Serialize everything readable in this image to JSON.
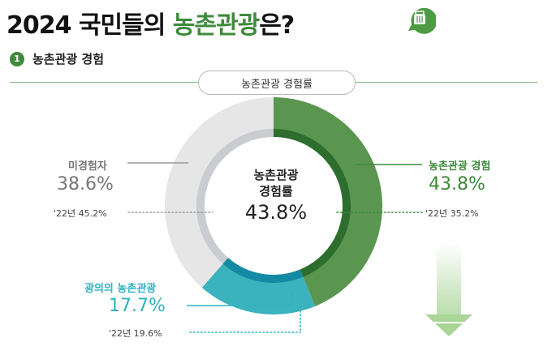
{
  "header": {
    "title_part1": "2024 국민들의 ",
    "title_highlight": "농촌관광",
    "title_part2": "은?"
  },
  "section": {
    "number": "1",
    "label": "농촌관광 경험"
  },
  "chart_data": {
    "type": "pie",
    "title": "농촌관광 경험률",
    "center_label_line1": "농촌관광",
    "center_label_line2": "경험률",
    "center_value": "43.8%",
    "slices": [
      {
        "label": "농촌관광 경험",
        "value": 43.8,
        "value_text": "43.8%",
        "prev_text": "'22년 35.2%",
        "color": "#5a9650"
      },
      {
        "label": "광의의 농촌관광",
        "value": 17.7,
        "value_text": "17.7%",
        "prev_text": "'22년 19.6%",
        "color": "#3bb3bf"
      },
      {
        "label": "미경험자",
        "value": 38.6,
        "value_text": "38.6%",
        "prev_text": "'22년 45.2%",
        "color": "#e6e6e6"
      }
    ],
    "label_colors": [
      "#3f8a3c",
      "#2fb2c2",
      "#777777"
    ],
    "inner_ring_colors": [
      "#2d6e2f",
      "#138aa3",
      "#c9ccd0"
    ]
  }
}
